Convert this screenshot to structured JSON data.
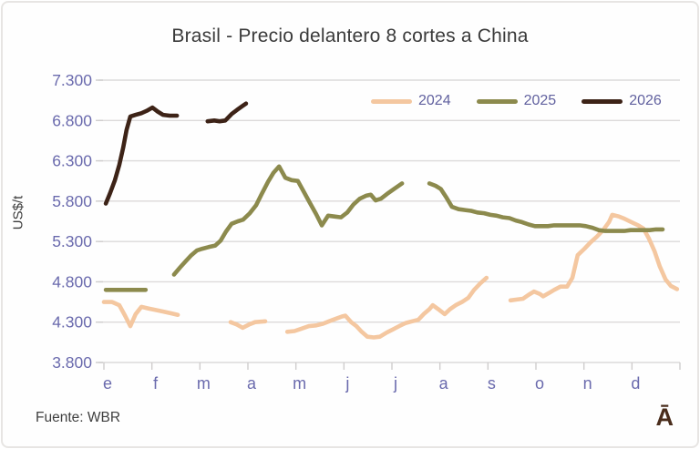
{
  "chart_data": {
    "type": "line",
    "title": "Brasil - Precio delantero 8 cortes a China",
    "ylabel": "US$/t",
    "y_unit": "US$/t",
    "x_unit": "months of year, 0 = start of January (e), 12 = end of December (d)",
    "x_tick_labels": [
      "e",
      "f",
      "m",
      "a",
      "m",
      "j",
      "j",
      "a",
      "s",
      "o",
      "n",
      "d"
    ],
    "y_tick_labels": [
      "3.800",
      "4.300",
      "4.800",
      "5.300",
      "5.800",
      "6.300",
      "6.800",
      "7.300"
    ],
    "ylim": [
      3800,
      7300
    ],
    "y_step": 500,
    "xlim_months": [
      0,
      12
    ],
    "grid": true,
    "legend_position": "top-right-inside",
    "grid_color": "#DCDADA",
    "tick_color": "#CFCDCD",
    "axis_label_color": "#6A6AAD",
    "series": [
      {
        "name": "2024",
        "color": "#F4C7A0",
        "segments": [
          [
            [
              0,
              4550
            ],
            [
              0.17,
              4550
            ],
            [
              0.32,
              4510
            ],
            [
              0.44,
              4380
            ],
            [
              0.55,
              4250
            ],
            [
              0.66,
              4400
            ],
            [
              0.78,
              4490
            ],
            [
              0.93,
              4470
            ],
            [
              1.08,
              4450
            ],
            [
              1.25,
              4430
            ],
            [
              1.4,
              4410
            ],
            [
              1.54,
              4390
            ]
          ],
          [
            [
              2.64,
              4300
            ],
            [
              2.77,
              4270
            ],
            [
              2.89,
              4230
            ],
            [
              3.02,
              4270
            ],
            [
              3.15,
              4300
            ],
            [
              3.36,
              4310
            ]
          ],
          [
            [
              3.82,
              4180
            ],
            [
              3.97,
              4190
            ],
            [
              4.12,
              4220
            ],
            [
              4.27,
              4250
            ],
            [
              4.42,
              4260
            ],
            [
              4.56,
              4280
            ],
            [
              4.69,
              4310
            ],
            [
              4.82,
              4340
            ],
            [
              4.96,
              4370
            ],
            [
              5.03,
              4380
            ],
            [
              5.15,
              4300
            ],
            [
              5.26,
              4250
            ],
            [
              5.37,
              4180
            ],
            [
              5.49,
              4120
            ],
            [
              5.62,
              4110
            ],
            [
              5.75,
              4120
            ],
            [
              5.89,
              4170
            ],
            [
              6.02,
              4210
            ],
            [
              6.15,
              4250
            ],
            [
              6.29,
              4290
            ],
            [
              6.42,
              4310
            ],
            [
              6.55,
              4330
            ],
            [
              6.66,
              4400
            ],
            [
              6.78,
              4460
            ],
            [
              6.85,
              4510
            ],
            [
              6.99,
              4450
            ],
            [
              7.1,
              4400
            ],
            [
              7.21,
              4460
            ],
            [
              7.33,
              4510
            ],
            [
              7.46,
              4550
            ],
            [
              7.59,
              4600
            ],
            [
              7.71,
              4700
            ],
            [
              7.84,
              4780
            ],
            [
              7.97,
              4850
            ]
          ],
          [
            [
              8.47,
              4570
            ],
            [
              8.6,
              4580
            ],
            [
              8.73,
              4590
            ],
            [
              8.85,
              4640
            ],
            [
              8.96,
              4680
            ],
            [
              9.08,
              4650
            ],
            [
              9.15,
              4620
            ],
            [
              9.27,
              4660
            ],
            [
              9.38,
              4700
            ],
            [
              9.51,
              4740
            ],
            [
              9.65,
              4740
            ],
            [
              9.76,
              4850
            ],
            [
              9.87,
              5130
            ],
            [
              10.01,
              5210
            ],
            [
              10.14,
              5290
            ],
            [
              10.27,
              5360
            ],
            [
              10.4,
              5440
            ],
            [
              10.52,
              5540
            ],
            [
              10.59,
              5630
            ],
            [
              10.73,
              5610
            ],
            [
              10.85,
              5580
            ],
            [
              10.99,
              5540
            ],
            [
              11.13,
              5500
            ],
            [
              11.24,
              5460
            ],
            [
              11.35,
              5340
            ],
            [
              11.47,
              5180
            ],
            [
              11.58,
              4990
            ],
            [
              11.7,
              4830
            ],
            [
              11.81,
              4750
            ],
            [
              11.94,
              4710
            ]
          ]
        ]
      },
      {
        "name": "2025",
        "color": "#8C8A4D",
        "segments": [
          [
            [
              0.04,
              4700
            ],
            [
              0.45,
              4700
            ],
            [
              0.87,
              4700
            ]
          ],
          [
            [
              1.46,
              4890
            ],
            [
              1.59,
              4980
            ],
            [
              1.71,
              5060
            ],
            [
              1.82,
              5130
            ],
            [
              1.94,
              5190
            ],
            [
              2.05,
              5210
            ],
            [
              2.18,
              5230
            ],
            [
              2.32,
              5250
            ],
            [
              2.43,
              5310
            ],
            [
              2.54,
              5420
            ],
            [
              2.66,
              5520
            ],
            [
              2.79,
              5550
            ],
            [
              2.9,
              5570
            ],
            [
              3.04,
              5650
            ],
            [
              3.17,
              5750
            ],
            [
              3.28,
              5880
            ],
            [
              3.42,
              6040
            ],
            [
              3.53,
              6150
            ],
            [
              3.65,
              6230
            ],
            [
              3.78,
              6090
            ],
            [
              3.91,
              6060
            ],
            [
              4.04,
              6050
            ],
            [
              4.18,
              5900
            ],
            [
              4.29,
              5780
            ],
            [
              4.42,
              5640
            ],
            [
              4.54,
              5500
            ],
            [
              4.67,
              5620
            ],
            [
              4.8,
              5610
            ],
            [
              4.94,
              5600
            ],
            [
              5.07,
              5660
            ],
            [
              5.2,
              5760
            ],
            [
              5.33,
              5830
            ],
            [
              5.47,
              5870
            ],
            [
              5.56,
              5880
            ],
            [
              5.66,
              5810
            ],
            [
              5.77,
              5830
            ],
            [
              5.9,
              5890
            ],
            [
              6.04,
              5950
            ],
            [
              6.21,
              6020
            ]
          ],
          [
            [
              6.78,
              6020
            ],
            [
              6.91,
              5990
            ],
            [
              7.02,
              5950
            ],
            [
              7.14,
              5840
            ],
            [
              7.25,
              5730
            ],
            [
              7.39,
              5700
            ],
            [
              7.52,
              5690
            ],
            [
              7.65,
              5680
            ],
            [
              7.78,
              5660
            ],
            [
              7.92,
              5650
            ],
            [
              8.05,
              5630
            ],
            [
              8.18,
              5620
            ],
            [
              8.31,
              5600
            ],
            [
              8.45,
              5590
            ],
            [
              8.58,
              5560
            ],
            [
              8.71,
              5540
            ],
            [
              8.85,
              5510
            ],
            [
              8.98,
              5490
            ],
            [
              9.11,
              5490
            ],
            [
              9.25,
              5490
            ],
            [
              9.38,
              5500
            ],
            [
              9.51,
              5500
            ],
            [
              9.65,
              5500
            ],
            [
              9.78,
              5500
            ],
            [
              9.91,
              5500
            ],
            [
              10.04,
              5490
            ],
            [
              10.18,
              5470
            ],
            [
              10.31,
              5440
            ],
            [
              10.44,
              5430
            ],
            [
              10.58,
              5430
            ],
            [
              10.71,
              5430
            ],
            [
              10.84,
              5430
            ],
            [
              10.97,
              5440
            ],
            [
              11.11,
              5440
            ],
            [
              11.24,
              5440
            ],
            [
              11.37,
              5440
            ],
            [
              11.5,
              5450
            ],
            [
              11.64,
              5450
            ]
          ]
        ]
      },
      {
        "name": "2026",
        "color": "#3D2317",
        "segments": [
          [
            [
              0.04,
              5770
            ],
            [
              0.13,
              5900
            ],
            [
              0.23,
              6060
            ],
            [
              0.32,
              6250
            ],
            [
              0.4,
              6460
            ],
            [
              0.47,
              6680
            ],
            [
              0.55,
              6850
            ],
            [
              0.66,
              6870
            ],
            [
              0.78,
              6890
            ],
            [
              0.89,
              6920
            ],
            [
              1.01,
              6960
            ],
            [
              1.12,
              6910
            ],
            [
              1.23,
              6870
            ],
            [
              1.37,
              6860
            ],
            [
              1.52,
              6860
            ]
          ],
          [
            [
              2.16,
              6790
            ],
            [
              2.3,
              6800
            ],
            [
              2.41,
              6790
            ],
            [
              2.53,
              6800
            ],
            [
              2.66,
              6880
            ],
            [
              2.77,
              6930
            ],
            [
              2.89,
              6980
            ],
            [
              2.96,
              7010
            ]
          ]
        ]
      }
    ]
  },
  "footer": {
    "source": "Fuente: WBR",
    "logo_text": "Ā"
  }
}
